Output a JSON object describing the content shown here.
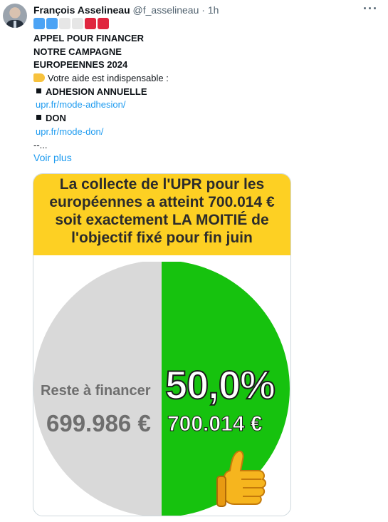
{
  "tweet": {
    "author_name": "François Asselineau",
    "handle": "@f_asselineau",
    "separator": "·",
    "time": "1h",
    "more_icon": "more-dots-icon",
    "badge_colors": [
      "#4ba3f5",
      "#4ba3f5",
      "#e6e6e6",
      "#e6e6e6",
      "#e0263f",
      "#e0263f"
    ],
    "lines": [
      "APPEL POUR FINANCER",
      "NOTRE CAMPAGNE",
      "EUROPEENNES 2024"
    ],
    "help_text": "Votre aide est indispensable :",
    "adhesion_label": "ADHESION ANNUELLE",
    "adhesion_link": "upr.fr/mode-adhesion/",
    "don_label": "DON",
    "don_link": "upr.fr/mode-don/",
    "trailing": "--...",
    "show_more": "Voir plus"
  },
  "image": {
    "headline_lines": [
      "La collecte de l'UPR pour les",
      "européennes a atteint 700.014 €",
      "soit exactement LA MOITIÉ de",
      "l'objectif fixé pour fin juin"
    ],
    "banner_color": "#fdd023",
    "chart_data": {
      "type": "pie",
      "slices": [
        {
          "label": "Reste à financer",
          "value": 699986,
          "display": "699.986 €",
          "color": "#d9d9d9"
        },
        {
          "label": "",
          "value": 700014,
          "display": "700.014 €",
          "color": "#16c20e"
        }
      ],
      "percent_label": "50,0%"
    }
  }
}
